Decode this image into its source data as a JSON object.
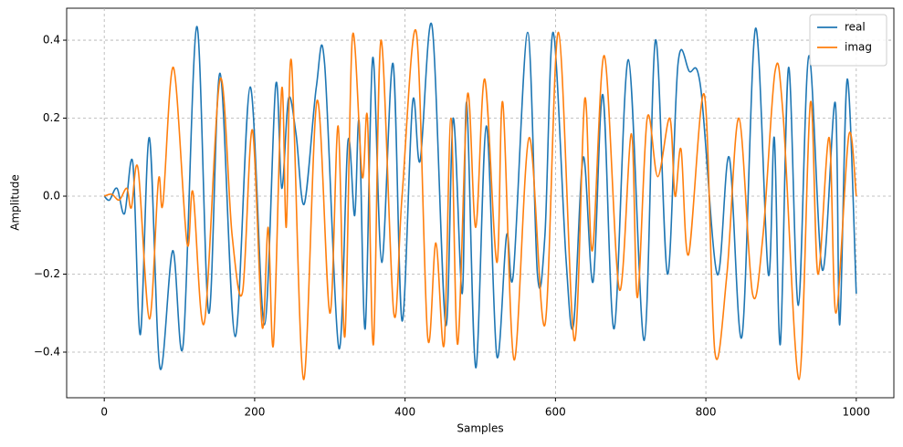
{
  "chart_data": {
    "type": "line",
    "xlabel": "Samples",
    "ylabel": "Amplitude",
    "xlim": [
      -50,
      1050
    ],
    "ylim": [
      -0.517,
      0.482
    ],
    "xticks": [
      0,
      200,
      400,
      600,
      800,
      1000
    ],
    "yticks": [
      {
        "value": -0.4,
        "label": "−0.4"
      },
      {
        "value": -0.2,
        "label": "−0.2"
      },
      {
        "value": 0,
        "label": "0.0"
      },
      0.2,
      0.4
    ],
    "grid": true,
    "legend": "upper right",
    "series": [
      {
        "name": "real",
        "color": "#1f77b4",
        "x": [
          0,
          7,
          17,
          27,
          38,
          48,
          60,
          74,
          91,
          105,
          123,
          139,
          154,
          174,
          194,
          213,
          228,
          236,
          245,
          255,
          266,
          282,
          293,
          312,
          324,
          333,
          339,
          347,
          357,
          369,
          384,
          396,
          410,
          420,
          436,
          454,
          464,
          476,
          482,
          494,
          508,
          522,
          535,
          544,
          563,
          576,
          586,
          597,
          614,
          624,
          637,
          650,
          663,
          678,
          697,
          718,
          733,
          749,
          763,
          778,
          793,
          815,
          831,
          848,
          866,
          883,
          891,
          899,
          910,
          923,
          937,
          955,
          972,
          978,
          988,
          1000
        ],
        "values": [
          0,
          -0.01,
          0.02,
          -0.045,
          0.085,
          -0.355,
          0.15,
          -0.44,
          -0.14,
          -0.38,
          0.435,
          -0.3,
          0.315,
          -0.36,
          0.28,
          -0.33,
          0.285,
          0.02,
          0.25,
          0.16,
          -0.02,
          0.28,
          0.34,
          -0.39,
          0.14,
          -0.05,
          0.19,
          -0.34,
          0.355,
          -0.17,
          0.34,
          -0.32,
          0.24,
          0.09,
          0.435,
          -0.33,
          0.2,
          -0.25,
          0.24,
          -0.44,
          0.18,
          -0.41,
          -0.1,
          -0.2,
          0.42,
          -0.2,
          -0.1,
          0.42,
          -0.16,
          -0.33,
          0.1,
          -0.22,
          0.26,
          -0.34,
          0.35,
          -0.37,
          0.4,
          -0.2,
          0.34,
          0.32,
          0.28,
          -0.2,
          0.1,
          -0.36,
          0.43,
          -0.2,
          0.15,
          -0.38,
          0.33,
          -0.28,
          0.36,
          -0.19,
          0.24,
          -0.33,
          0.3,
          -0.25
        ]
      },
      {
        "name": "imag",
        "color": "#ff7f0e",
        "x": [
          0,
          10,
          20,
          30,
          36,
          45,
          60,
          72,
          78,
          92,
          110,
          118,
          133,
          154,
          170,
          184,
          197,
          210,
          218,
          225,
          236,
          242,
          249,
          265,
          283,
          300,
          311,
          320,
          330,
          343,
          350,
          358,
          368,
          385,
          396,
          415,
          430,
          441,
          452,
          461,
          470,
          483,
          494,
          506,
          522,
          530,
          545,
          565,
          586,
          604,
          625,
          639,
          649,
          665,
          685,
          701,
          709,
          722,
          736,
          752,
          759,
          767,
          777,
          798,
          812,
          828,
          844,
          862,
          876,
          892,
          903,
          924,
          939,
          949,
          964,
          973,
          990,
          1000
        ],
        "values": [
          0,
          0.005,
          -0.01,
          0.02,
          -0.03,
          0.07,
          -0.315,
          0.04,
          -0.02,
          0.33,
          -0.12,
          0.01,
          -0.325,
          0.3,
          -0.1,
          -0.245,
          0.17,
          -0.335,
          -0.08,
          -0.38,
          0.275,
          -0.08,
          0.345,
          -0.47,
          0.245,
          -0.3,
          0.18,
          -0.36,
          0.41,
          0.05,
          0.2,
          -0.38,
          0.4,
          -0.3,
          0,
          0.42,
          -0.36,
          -0.12,
          -0.38,
          0.2,
          -0.38,
          0.26,
          -0.08,
          0.3,
          -0.17,
          0.24,
          -0.42,
          0.15,
          -0.33,
          0.42,
          -0.37,
          0.25,
          -0.14,
          0.36,
          -0.24,
          0.16,
          -0.26,
          0.2,
          0.05,
          0.2,
          0,
          0.12,
          -0.15,
          0.26,
          -0.4,
          -0.2,
          0.2,
          -0.25,
          -0.1,
          0.32,
          0.2,
          -0.47,
          0.24,
          -0.2,
          0.15,
          -0.3,
          0.155,
          0
        ]
      }
    ]
  }
}
